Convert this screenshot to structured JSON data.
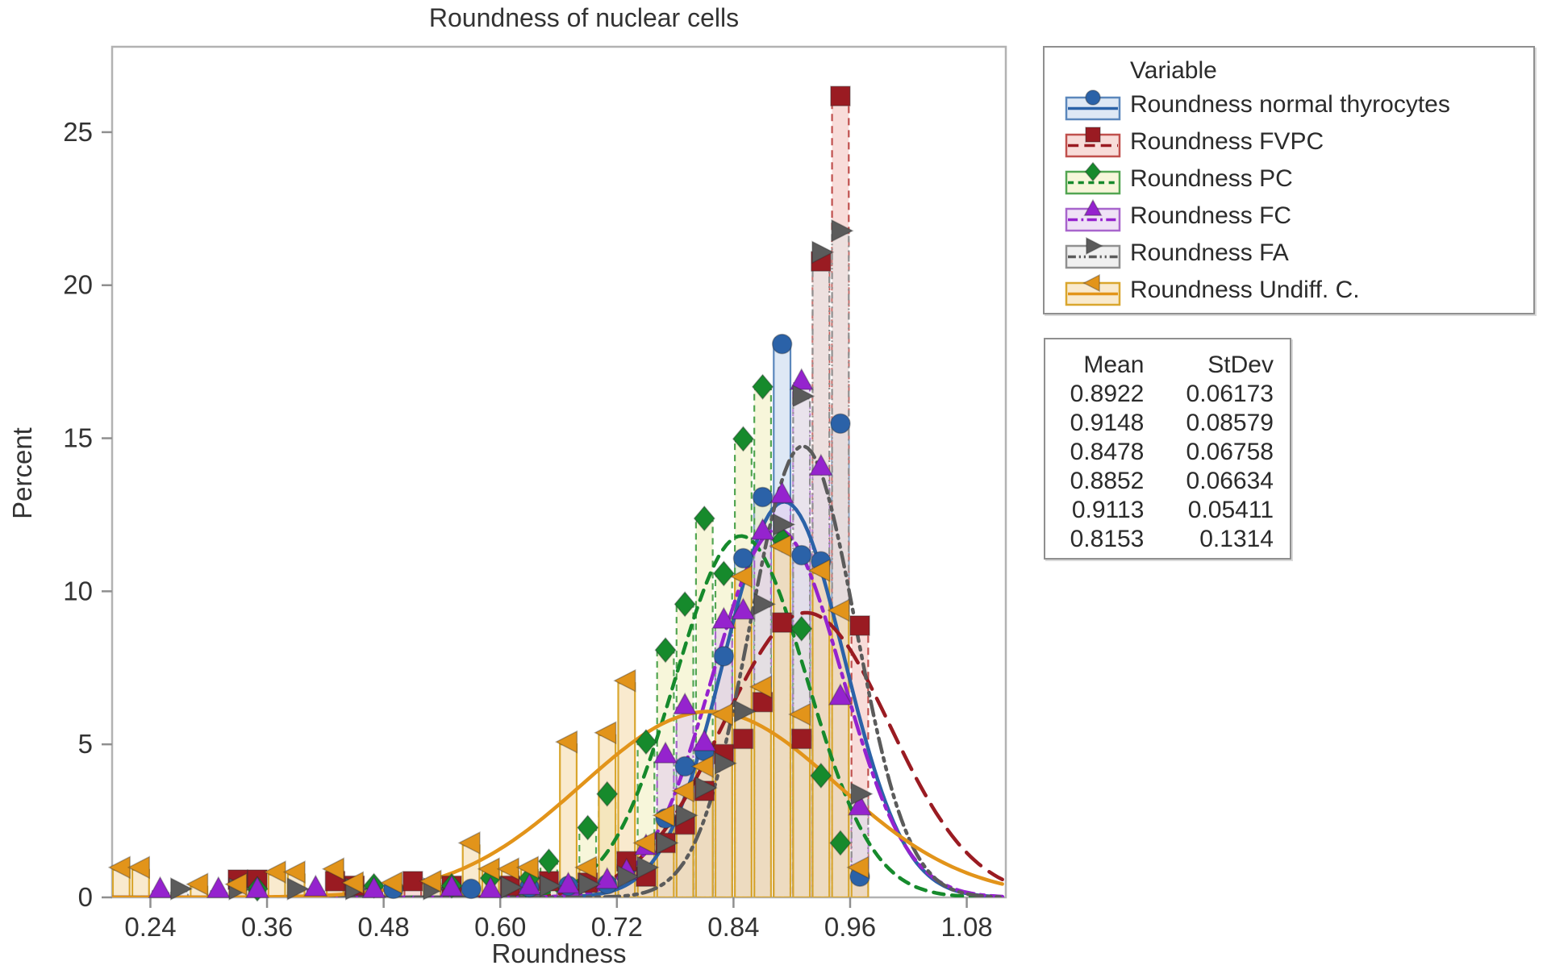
{
  "figure": {
    "title": "Roundness of nuclear cells",
    "xlabel": "Roundness",
    "ylabel": "Percent"
  },
  "legend": {
    "title": "Variable",
    "entries": [
      {
        "label": "Roundness normal thyrocytes"
      },
      {
        "label": "Roundness FVPC"
      },
      {
        "label": "Roundness PC"
      },
      {
        "label": "Roundness FC"
      },
      {
        "label": "Roundness FA"
      },
      {
        "label": "Roundness Undiff. C."
      }
    ]
  },
  "stats_table": {
    "headers": [
      "Mean",
      "StDev"
    ],
    "rows": [
      [
        "0.8922",
        "0.06173"
      ],
      [
        "0.9148",
        "0.08579"
      ],
      [
        "0.8478",
        "0.06758"
      ],
      [
        "0.8852",
        "0.06634"
      ],
      [
        "0.9113",
        "0.05411"
      ],
      [
        "0.8153",
        "0.1314"
      ]
    ]
  },
  "chart_data": {
    "type": "bar",
    "subtype": "overlaid-histograms-with-normal-fit",
    "title": "Roundness of nuclear cells",
    "xlabel": "Roundness",
    "ylabel": "Percent",
    "bin_width": 0.02,
    "grid": false,
    "legend_position": "outside-top-right",
    "x_axis": {
      "ticks": [
        0.24,
        0.36,
        0.48,
        0.6,
        0.72,
        0.84,
        0.96,
        1.08
      ],
      "range": [
        0.2006,
        1.1202
      ]
    },
    "y_axis": {
      "ticks": [
        0,
        5,
        10,
        15,
        20,
        25
      ],
      "range": [
        0,
        27.79
      ]
    },
    "series": [
      {
        "name": "Roundness normal thyrocytes",
        "mean": 0.8922,
        "stdev": 0.06173,
        "color": "#2B62A8",
        "edge": "#5B87BC",
        "fill": "#C3D5EC",
        "dash": "solid",
        "marker": "circle",
        "bars": [
          [
            0.49,
            0.2
          ],
          [
            0.57,
            0.2
          ],
          [
            0.63,
            0.25
          ],
          [
            0.67,
            0.3
          ],
          [
            0.71,
            0.35
          ],
          [
            0.73,
            0.9
          ],
          [
            0.77,
            2.5
          ],
          [
            0.79,
            4.2
          ],
          [
            0.81,
            4.7
          ],
          [
            0.83,
            7.8
          ],
          [
            0.85,
            11.0
          ],
          [
            0.87,
            13.0
          ],
          [
            0.89,
            18.0
          ],
          [
            0.91,
            11.1
          ],
          [
            0.93,
            10.9
          ],
          [
            0.95,
            15.4
          ],
          [
            0.97,
            0.6
          ]
        ]
      },
      {
        "name": "Roundness FVPC",
        "mean": 0.9148,
        "stdev": 0.08579,
        "color": "#9A1B22",
        "edge": "#C0504D",
        "fill": "#F3BFBA",
        "dash": "long-dash",
        "marker": "square",
        "bars": [
          [
            0.33,
            0.5
          ],
          [
            0.35,
            0.5
          ],
          [
            0.43,
            0.45
          ],
          [
            0.45,
            0.3
          ],
          [
            0.51,
            0.45
          ],
          [
            0.55,
            0.3
          ],
          [
            0.61,
            0.3
          ],
          [
            0.65,
            0.45
          ],
          [
            0.69,
            0.4
          ],
          [
            0.73,
            1.1
          ],
          [
            0.75,
            0.6
          ],
          [
            0.77,
            1.7
          ],
          [
            0.79,
            2.3
          ],
          [
            0.81,
            3.4
          ],
          [
            0.83,
            4.6
          ],
          [
            0.85,
            5.1
          ],
          [
            0.87,
            6.3
          ],
          [
            0.89,
            8.9
          ],
          [
            0.91,
            5.1
          ],
          [
            0.93,
            20.7
          ],
          [
            0.95,
            26.1
          ],
          [
            0.97,
            8.8
          ]
        ]
      },
      {
        "name": "Roundness PC",
        "mean": 0.8478,
        "stdev": 0.06758,
        "color": "#168A2C",
        "edge": "#52A552",
        "fill": "#F0EFBC",
        "dash": "dash",
        "marker": "diamond",
        "bars": [
          [
            0.35,
            0.2
          ],
          [
            0.47,
            0.3
          ],
          [
            0.55,
            0.3
          ],
          [
            0.59,
            0.55
          ],
          [
            0.63,
            0.55
          ],
          [
            0.65,
            1.1
          ],
          [
            0.69,
            2.2
          ],
          [
            0.71,
            3.3
          ],
          [
            0.75,
            5.0
          ],
          [
            0.77,
            8.0
          ],
          [
            0.79,
            9.5
          ],
          [
            0.81,
            12.3
          ],
          [
            0.83,
            10.5
          ],
          [
            0.85,
            14.9
          ],
          [
            0.87,
            16.6
          ],
          [
            0.89,
            11.6
          ],
          [
            0.91,
            8.7
          ],
          [
            0.93,
            3.9
          ],
          [
            0.95,
            1.7
          ]
        ]
      },
      {
        "name": "Roundness FC",
        "mean": 0.8852,
        "stdev": 0.06634,
        "color": "#9523CE",
        "edge": "#A865CC",
        "fill": "#E2CBEF",
        "dash": "dash-dot",
        "marker": "triangle-up",
        "bars": [
          [
            0.25,
            0.2
          ],
          [
            0.31,
            0.2
          ],
          [
            0.35,
            0.2
          ],
          [
            0.41,
            0.25
          ],
          [
            0.47,
            0.2
          ],
          [
            0.55,
            0.25
          ],
          [
            0.59,
            0.2
          ],
          [
            0.63,
            0.3
          ],
          [
            0.67,
            0.35
          ],
          [
            0.71,
            0.5
          ],
          [
            0.73,
            0.8
          ],
          [
            0.75,
            1.6
          ],
          [
            0.77,
            4.6
          ],
          [
            0.79,
            6.2
          ],
          [
            0.81,
            5.0
          ],
          [
            0.83,
            9.0
          ],
          [
            0.85,
            9.3
          ],
          [
            0.87,
            11.9
          ],
          [
            0.89,
            13.1
          ],
          [
            0.91,
            16.8
          ],
          [
            0.93,
            14.0
          ],
          [
            0.95,
            6.5
          ],
          [
            0.97,
            2.9
          ]
        ]
      },
      {
        "name": "Roundness FA",
        "mean": 0.9113,
        "stdev": 0.05411,
        "color": "#5B5B5B",
        "edge": "#909090",
        "fill": "#E4E4E4",
        "dash": "dash-dot-dot",
        "marker": "triangle-right",
        "bars": [
          [
            0.27,
            0.2
          ],
          [
            0.33,
            0.2
          ],
          [
            0.39,
            0.2
          ],
          [
            0.45,
            0.2
          ],
          [
            0.53,
            0.2
          ],
          [
            0.61,
            0.25
          ],
          [
            0.65,
            0.3
          ],
          [
            0.69,
            0.35
          ],
          [
            0.73,
            0.6
          ],
          [
            0.75,
            0.9
          ],
          [
            0.77,
            1.7
          ],
          [
            0.79,
            2.6
          ],
          [
            0.81,
            3.5
          ],
          [
            0.83,
            4.3
          ],
          [
            0.85,
            6.0
          ],
          [
            0.87,
            9.5
          ],
          [
            0.89,
            12.1
          ],
          [
            0.91,
            16.3
          ],
          [
            0.93,
            21.0
          ],
          [
            0.95,
            21.7
          ],
          [
            0.97,
            3.3
          ]
        ]
      },
      {
        "name": "Roundness Undiff. C.",
        "mean": 0.8153,
        "stdev": 0.1314,
        "color": "#E2941A",
        "edge": "#D9A62E",
        "fill": "#F4D9A6",
        "dash": "solid",
        "marker": "triangle-left",
        "bars": [
          [
            0.21,
            0.9
          ],
          [
            0.23,
            0.9
          ],
          [
            0.29,
            0.35
          ],
          [
            0.33,
            0.35
          ],
          [
            0.37,
            0.75
          ],
          [
            0.39,
            0.75
          ],
          [
            0.43,
            0.85
          ],
          [
            0.45,
            0.4
          ],
          [
            0.49,
            0.4
          ],
          [
            0.53,
            0.45
          ],
          [
            0.57,
            1.7
          ],
          [
            0.59,
            0.85
          ],
          [
            0.61,
            0.85
          ],
          [
            0.63,
            0.9
          ],
          [
            0.67,
            5.0
          ],
          [
            0.69,
            0.9
          ],
          [
            0.71,
            5.3
          ],
          [
            0.73,
            7.0
          ],
          [
            0.75,
            1.7
          ],
          [
            0.77,
            2.6
          ],
          [
            0.79,
            3.4
          ],
          [
            0.81,
            4.2
          ],
          [
            0.83,
            5.9
          ],
          [
            0.85,
            10.4
          ],
          [
            0.87,
            6.8
          ],
          [
            0.89,
            11.4
          ],
          [
            0.91,
            5.9
          ],
          [
            0.93,
            10.6
          ],
          [
            0.95,
            9.3
          ],
          [
            0.97,
            0.9
          ]
        ]
      }
    ]
  }
}
